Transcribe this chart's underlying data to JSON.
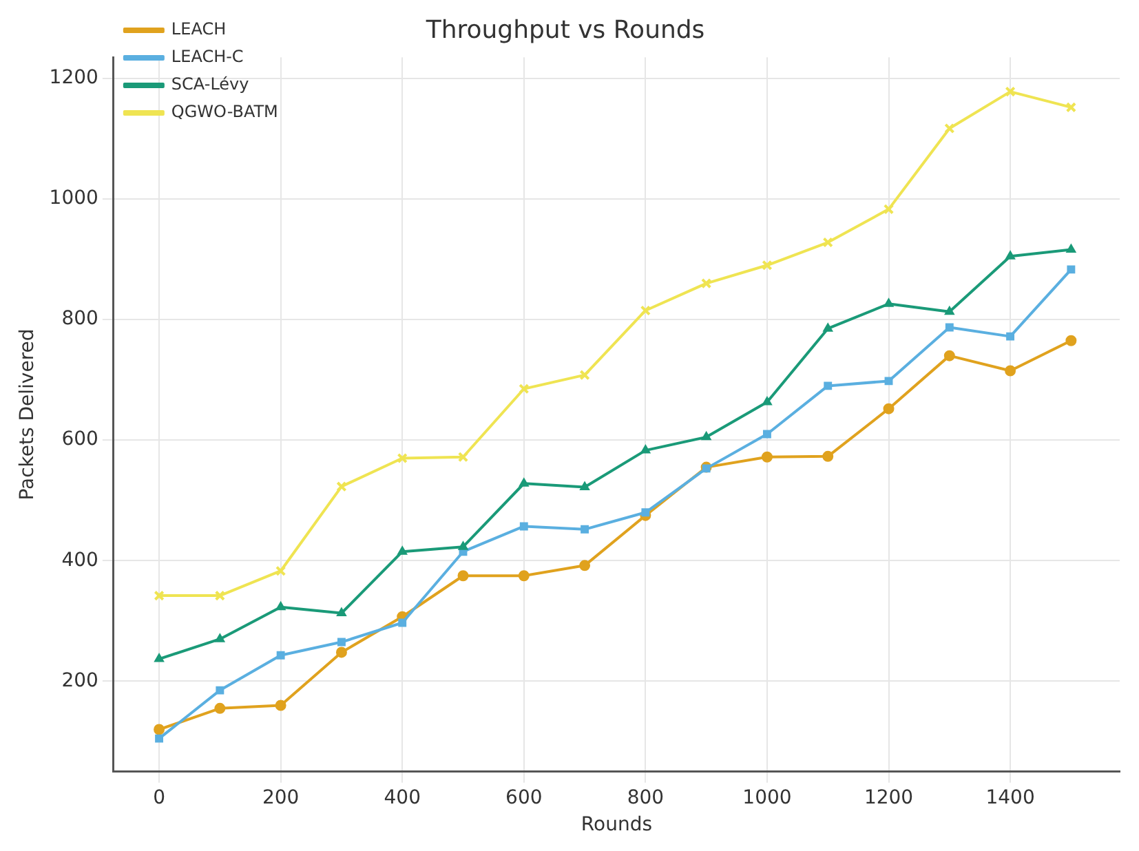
{
  "chart_data": {
    "type": "line",
    "title": "Throughput vs Rounds",
    "xlabel": "Rounds",
    "ylabel": "Packets Delivered",
    "x": [
      0,
      100,
      200,
      300,
      400,
      500,
      600,
      700,
      800,
      900,
      1000,
      1100,
      1200,
      1300,
      1400,
      1500
    ],
    "series": [
      {
        "name": "LEACH",
        "color": "#e0a21e",
        "marker": "circle",
        "values": [
          120,
          155,
          160,
          248,
          307,
          375,
          375,
          392,
          475,
          555,
          572,
          573,
          652,
          740,
          715,
          765
        ]
      },
      {
        "name": "LEACH-C",
        "color": "#5aafe0",
        "marker": "square",
        "values": [
          105,
          185,
          243,
          265,
          297,
          415,
          457,
          452,
          480,
          553,
          610,
          690,
          698,
          787,
          772,
          883
        ]
      },
      {
        "name": "SCA-Lévy",
        "color": "#1a9a78",
        "marker": "triangle",
        "values": [
          237,
          270,
          323,
          313,
          415,
          423,
          528,
          522,
          583,
          605,
          663,
          785,
          826,
          813,
          905,
          916
        ]
      },
      {
        "name": "QGWO-BATM",
        "color": "#efe452",
        "marker": "cross",
        "values": [
          342,
          342,
          383,
          523,
          570,
          572,
          685,
          708,
          815,
          860,
          890,
          928,
          983,
          1117,
          1178,
          1152
        ]
      }
    ],
    "xlim": [
      -75,
      1580
    ],
    "xticks": [
      0,
      200,
      400,
      600,
      800,
      1000,
      1200,
      1400
    ],
    "ylim": [
      50,
      1235
    ],
    "yticks": [
      200,
      400,
      600,
      800,
      1000,
      1200
    ],
    "grid": true,
    "legend": "top left",
    "line_style": "solid"
  }
}
